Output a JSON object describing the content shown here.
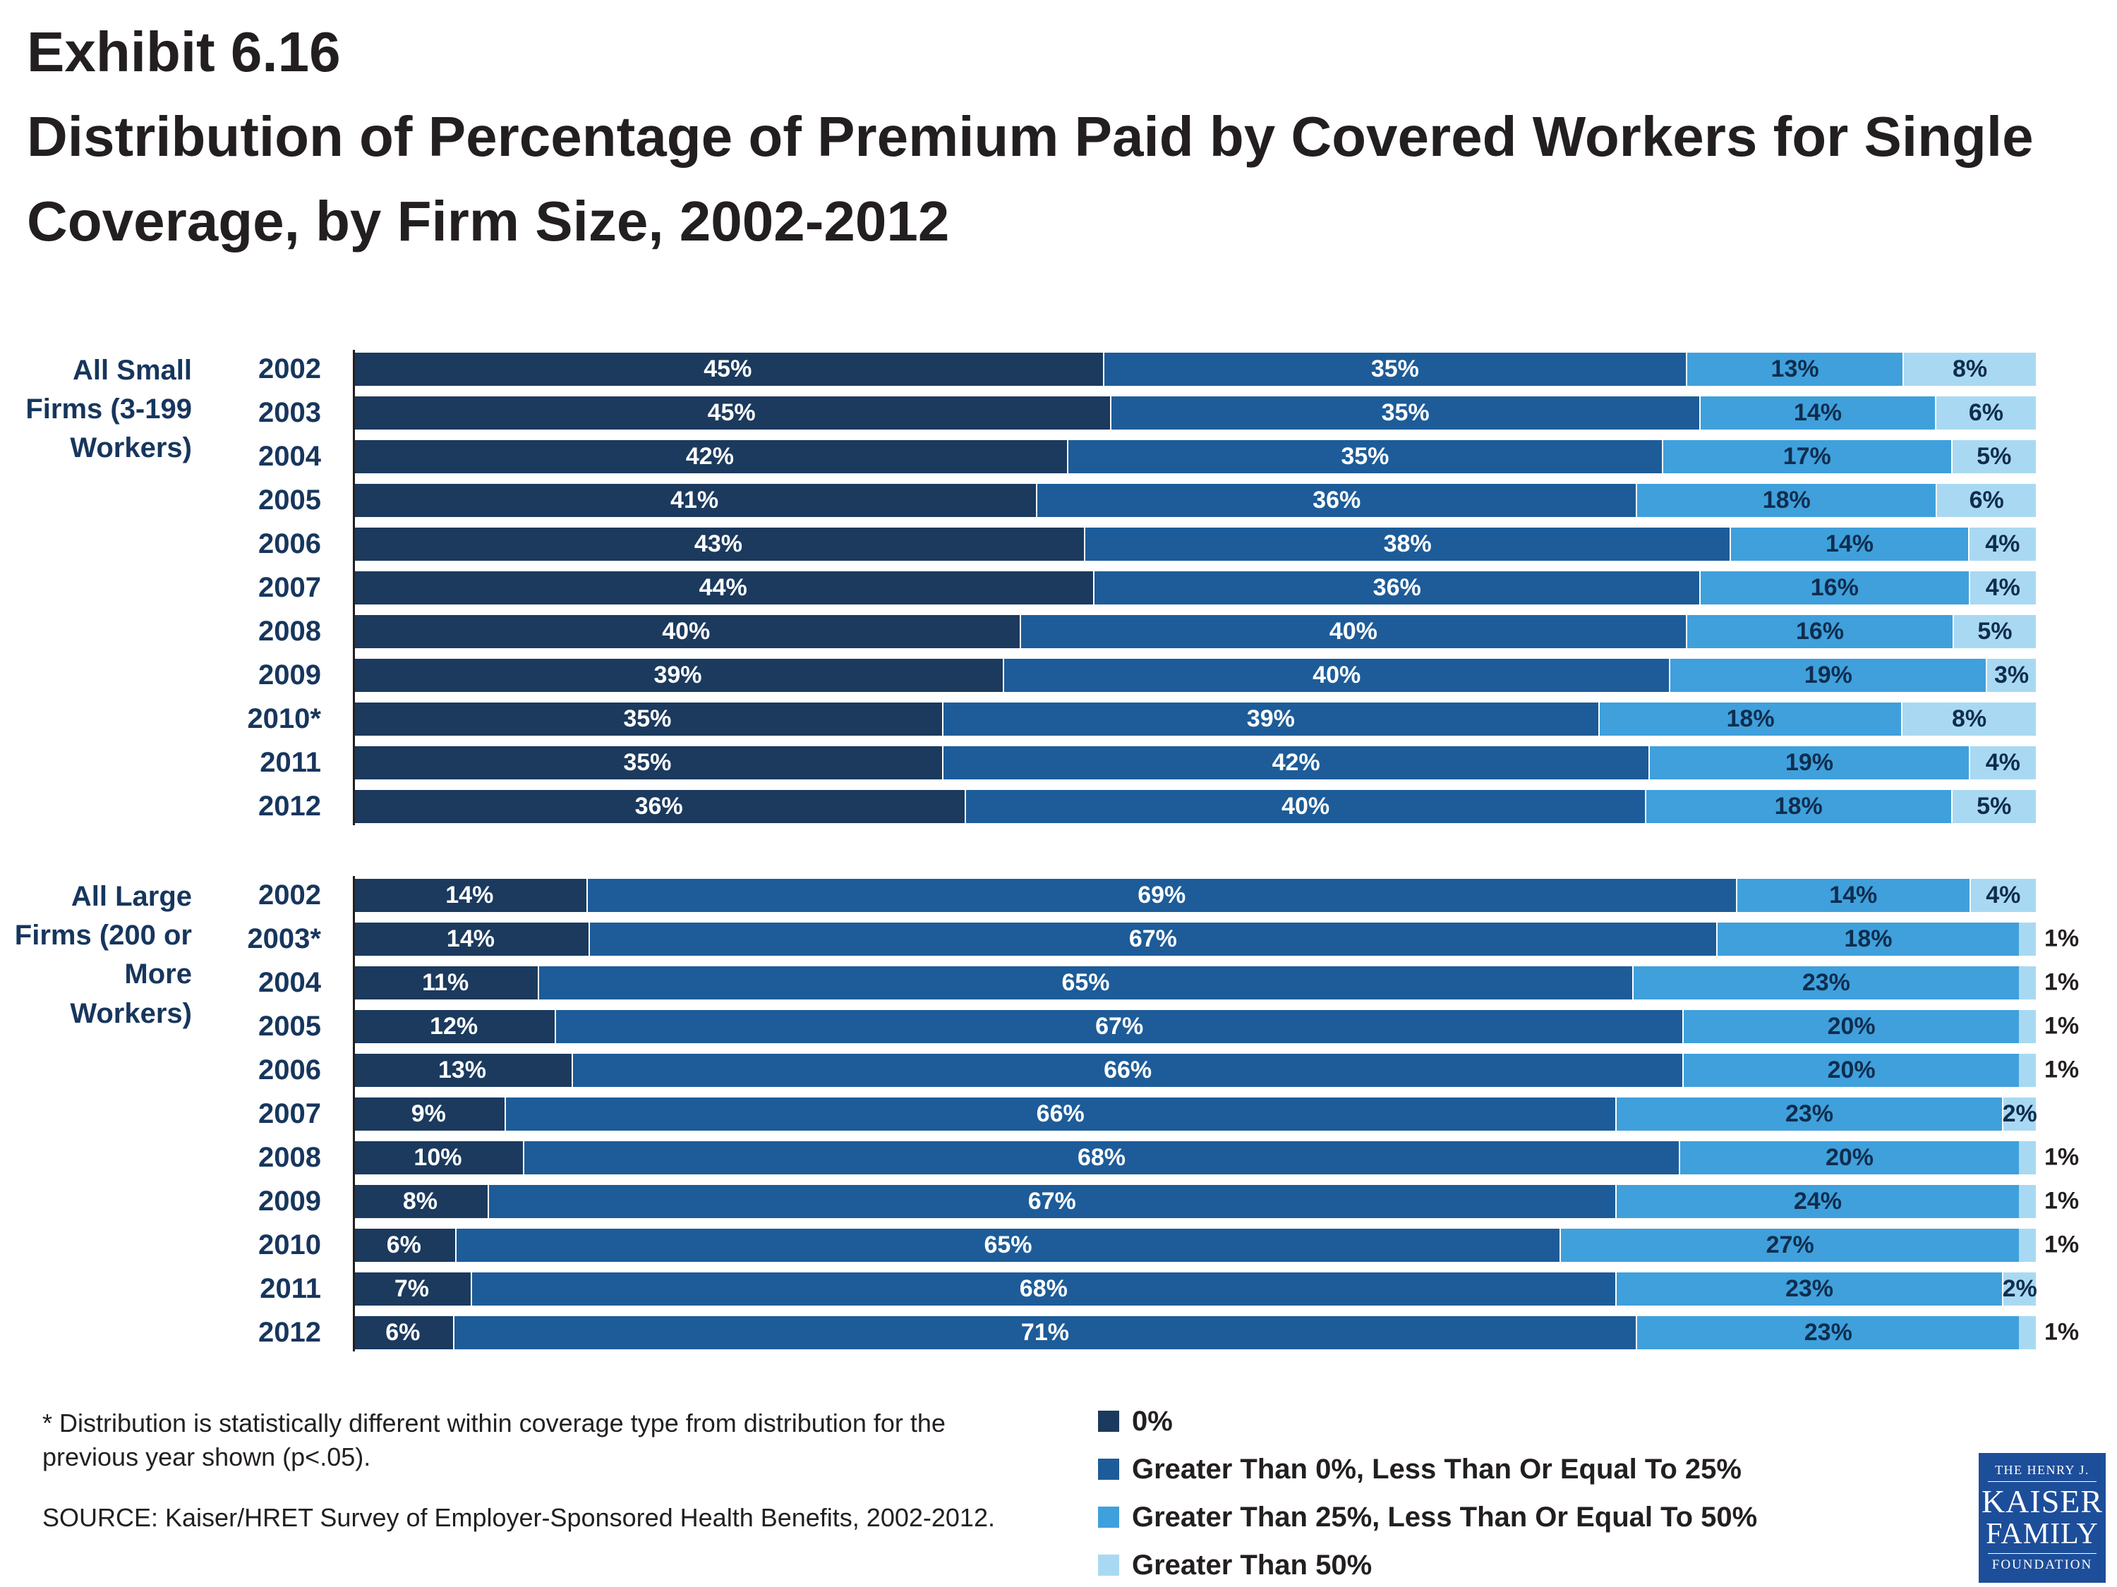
{
  "title": {
    "exhibit": "Exhibit 6.16",
    "main": "Distribution of Percentage of Premium Paid by Covered Workers for Single Coverage, by Firm Size, 2002-2012"
  },
  "chart_data": {
    "type": "bar",
    "orientation": "horizontal",
    "stacked": true,
    "unit": "%",
    "xlim": [
      0,
      100
    ],
    "legend_position": "bottom",
    "legend": [
      {
        "label": "0%",
        "color": "#1B3A5E"
      },
      {
        "label": "Greater Than 0%, Less Than Or Equal To 25%",
        "color": "#1D5C99"
      },
      {
        "label": "Greater Than 25%, Less Than Or Equal To 50%",
        "color": "#3FA0DC"
      },
      {
        "label": "Greater Than 50%",
        "color": "#A9D9F2"
      }
    ],
    "groups": [
      {
        "label": "All Small Firms (3-199 Workers)",
        "rows": [
          {
            "year": "2002",
            "values": [
              45,
              35,
              13,
              8
            ]
          },
          {
            "year": "2003",
            "values": [
              45,
              35,
              14,
              6
            ]
          },
          {
            "year": "2004",
            "values": [
              42,
              35,
              17,
              5
            ]
          },
          {
            "year": "2005",
            "values": [
              41,
              36,
              18,
              6
            ]
          },
          {
            "year": "2006",
            "values": [
              43,
              38,
              14,
              4
            ]
          },
          {
            "year": "2007",
            "values": [
              44,
              36,
              16,
              4
            ]
          },
          {
            "year": "2008",
            "values": [
              40,
              40,
              16,
              5
            ]
          },
          {
            "year": "2009",
            "values": [
              39,
              40,
              19,
              3
            ]
          },
          {
            "year": "2010*",
            "values": [
              35,
              39,
              18,
              8
            ]
          },
          {
            "year": "2011",
            "values": [
              35,
              42,
              19,
              4
            ]
          },
          {
            "year": "2012",
            "values": [
              36,
              40,
              18,
              5
            ]
          }
        ]
      },
      {
        "label": "All Large Firms (200 or More Workers)",
        "rows": [
          {
            "year": "2002",
            "values": [
              14,
              69,
              14,
              4
            ]
          },
          {
            "year": "2003*",
            "values": [
              14,
              67,
              18,
              1
            ]
          },
          {
            "year": "2004",
            "values": [
              11,
              65,
              23,
              1
            ]
          },
          {
            "year": "2005",
            "values": [
              12,
              67,
              20,
              1
            ]
          },
          {
            "year": "2006",
            "values": [
              13,
              66,
              20,
              1
            ]
          },
          {
            "year": "2007",
            "values": [
              9,
              66,
              23,
              2
            ]
          },
          {
            "year": "2008",
            "values": [
              10,
              68,
              20,
              1
            ]
          },
          {
            "year": "2009",
            "values": [
              8,
              67,
              24,
              1
            ]
          },
          {
            "year": "2010",
            "values": [
              6,
              65,
              27,
              1
            ]
          },
          {
            "year": "2011",
            "values": [
              7,
              68,
              23,
              2
            ]
          },
          {
            "year": "2012",
            "values": [
              6,
              71,
              23,
              1
            ]
          }
        ]
      }
    ],
    "label_colors": {
      "on_dark_segments": "#ffffff",
      "on_light_segments": "#0F2D4E",
      "outside": "#231f20"
    }
  },
  "footnotes": {
    "asterisk": "* Distribution is statistically different within coverage type from distribution for the previous year shown (p<.05).",
    "source": "SOURCE:  Kaiser/HRET Survey of Employer-Sponsored Health Benefits, 2002-2012."
  },
  "logo": {
    "line1": "THE HENRY J.",
    "line2": "KAISER",
    "line3": "FAMILY",
    "line4": "FOUNDATION",
    "bg": "#1D4E9A"
  }
}
